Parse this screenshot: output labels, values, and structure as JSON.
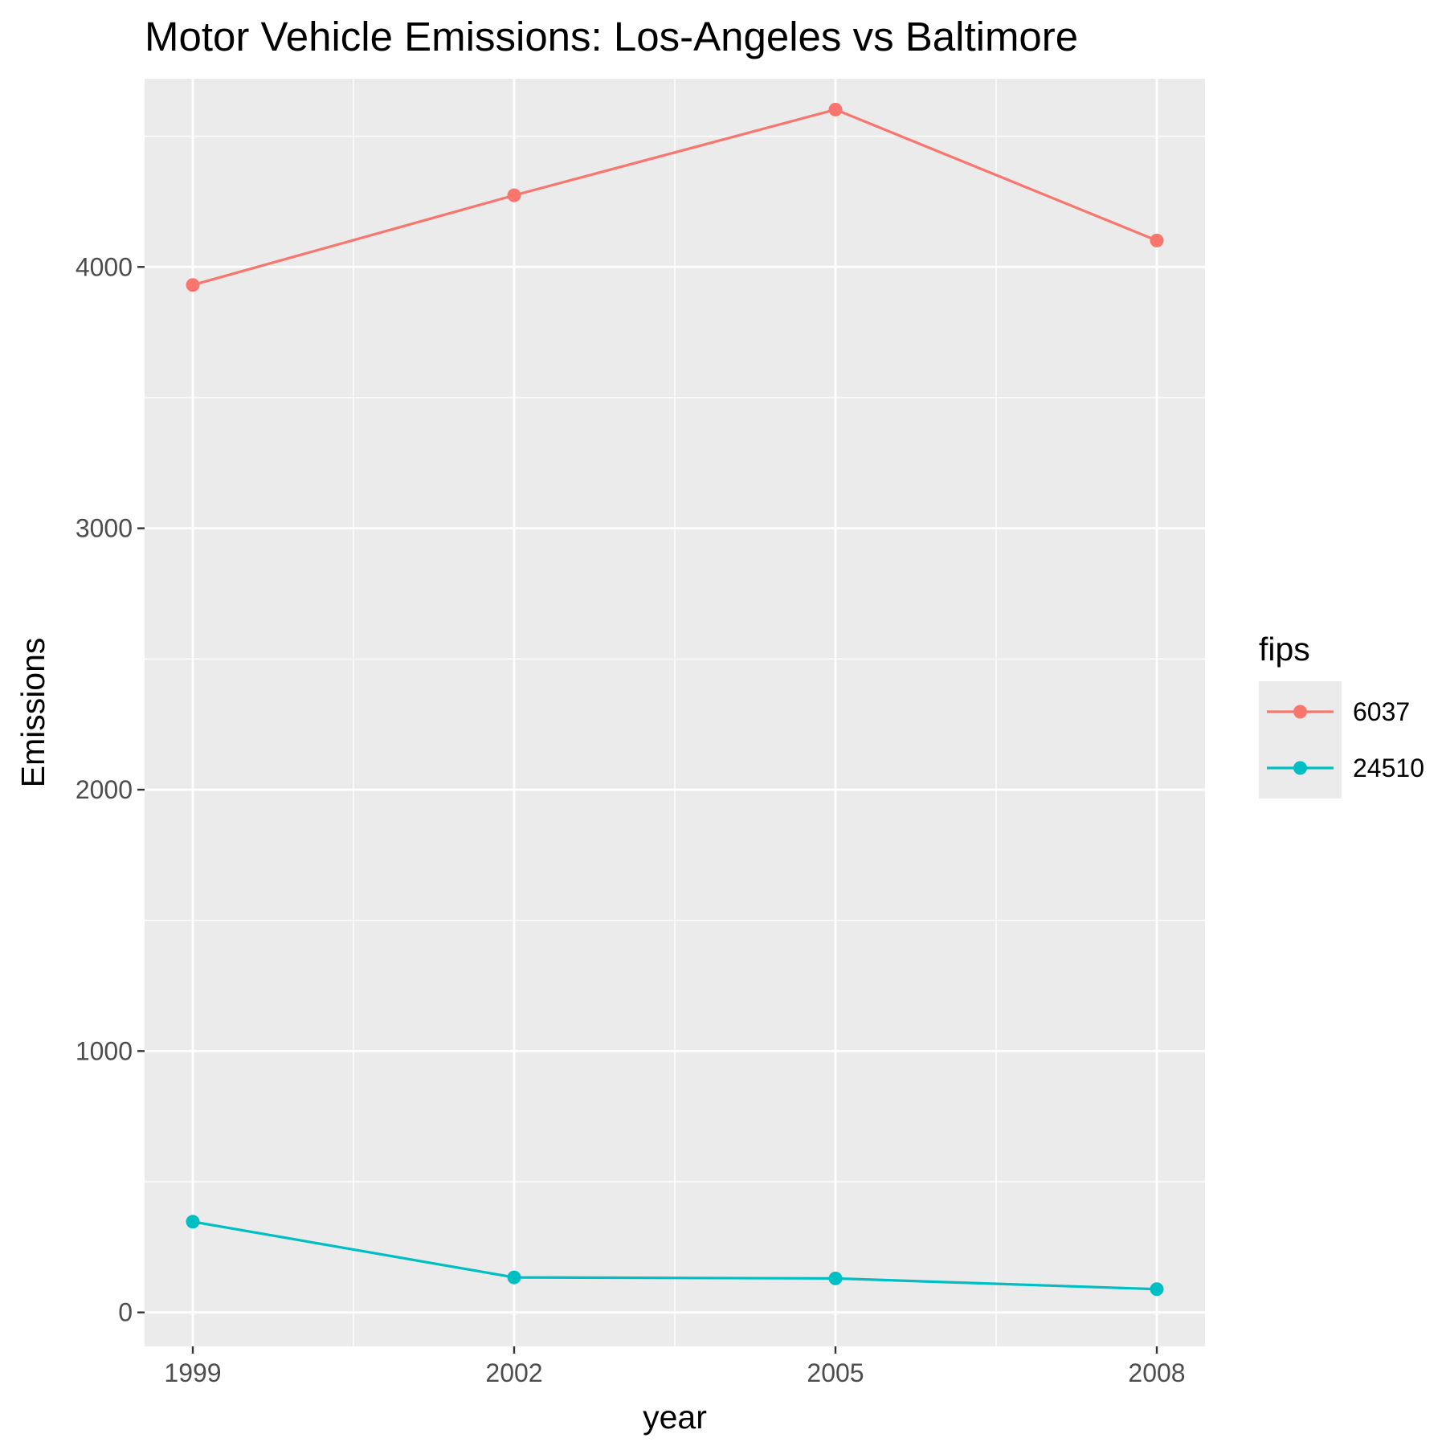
{
  "chart_data": {
    "type": "line",
    "title": "Motor Vehicle Emissions: Los-Angeles vs Baltimore",
    "xlabel": "year",
    "ylabel": "Emissions",
    "x": [
      1999,
      2002,
      2005,
      2008
    ],
    "x_ticks": [
      "1999",
      "2002",
      "2005",
      "2008"
    ],
    "y_ticks": [
      "0",
      "1000",
      "2000",
      "3000",
      "4000"
    ],
    "xlim": [
      1998.55,
      2008.45
    ],
    "ylim": [
      -130,
      4720
    ],
    "grid": true,
    "legend": {
      "title": "fips",
      "placement": "right"
    },
    "series": [
      {
        "name": "6037",
        "color": "#F8766D",
        "values": [
          3931,
          4274,
          4602,
          4101
        ]
      },
      {
        "name": "24510",
        "color": "#00BFC4",
        "values": [
          347,
          134,
          130,
          89
        ]
      }
    ]
  },
  "colors": {
    "panel_background": "#EBEBEB",
    "grid": "#FFFFFF",
    "tick_text": "#4D4D4D",
    "tick_mark": "#333333"
  }
}
